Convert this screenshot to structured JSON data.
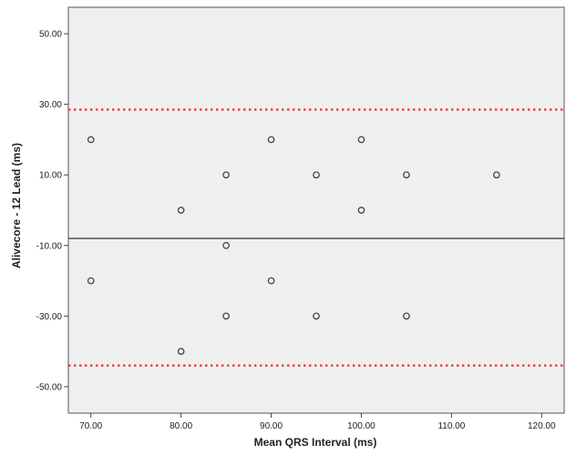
{
  "chart_data": {
    "type": "scatter",
    "xlabel": "Mean QRS Interval (ms)",
    "ylabel": "Alivecore - 12 Lead (ms)",
    "xlim": [
      67.5,
      122.5
    ],
    "ylim": [
      -57.5,
      57.5
    ],
    "x_ticks": [
      70,
      80,
      90,
      100,
      110,
      120
    ],
    "x_tick_labels": [
      "70.00",
      "80.00",
      "90.00",
      "100.00",
      "110.00",
      "120.00"
    ],
    "y_ticks": [
      50,
      30,
      10,
      -10,
      -30,
      -50
    ],
    "y_tick_labels": [
      "50.00",
      "30.00",
      "10.00",
      "-10.00",
      "-30.00",
      "-50.00"
    ],
    "grid": false,
    "background": "#efefef",
    "reference_lines": [
      {
        "y": -8,
        "style": "solid",
        "color": "#333333"
      },
      {
        "y": 28.5,
        "style": "dotted",
        "color": "#e8373a"
      },
      {
        "y": -44,
        "style": "dotted",
        "color": "#e8373a"
      }
    ],
    "points": [
      {
        "x": 70,
        "y": 20
      },
      {
        "x": 90,
        "y": 20
      },
      {
        "x": 100,
        "y": 20
      },
      {
        "x": 85,
        "y": 10
      },
      {
        "x": 95,
        "y": 10
      },
      {
        "x": 105,
        "y": 10
      },
      {
        "x": 115,
        "y": 10
      },
      {
        "x": 80,
        "y": 0
      },
      {
        "x": 100,
        "y": 0
      },
      {
        "x": 85,
        "y": -10
      },
      {
        "x": 70,
        "y": -20
      },
      {
        "x": 90,
        "y": -20
      },
      {
        "x": 85,
        "y": -30
      },
      {
        "x": 95,
        "y": -30
      },
      {
        "x": 105,
        "y": -30
      },
      {
        "x": 80,
        "y": -40
      }
    ],
    "marker_color": "#444444"
  }
}
